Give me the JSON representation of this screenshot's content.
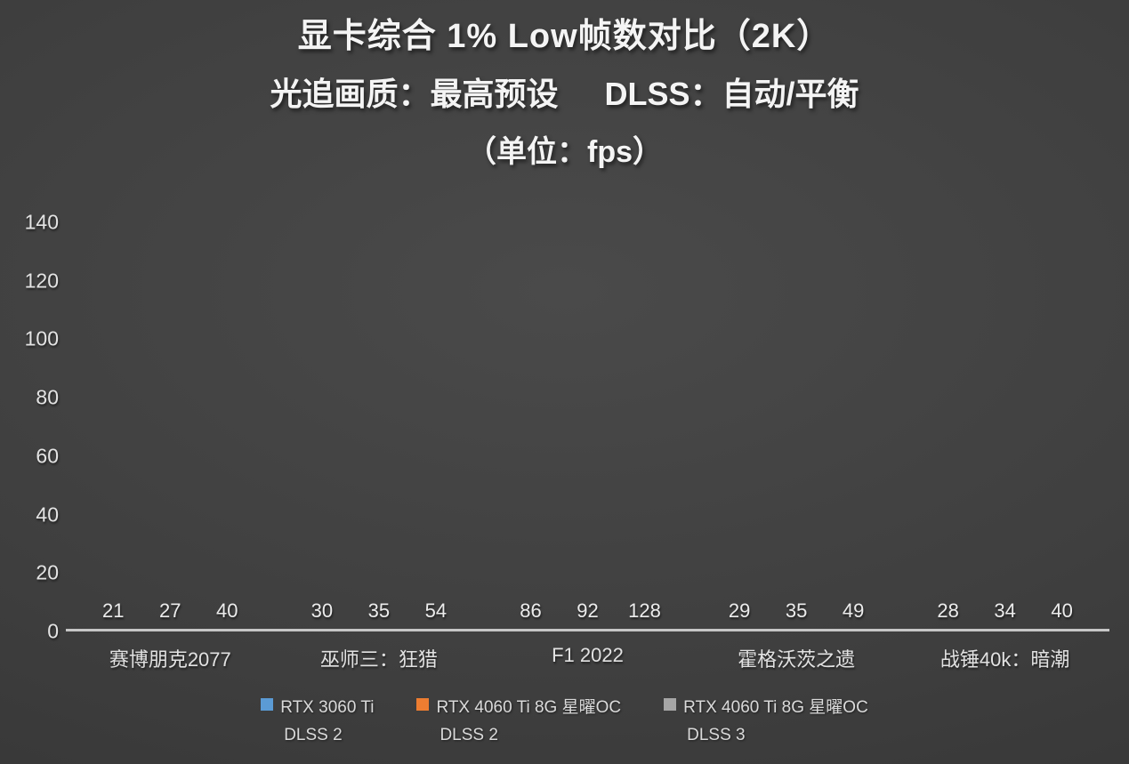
{
  "title": {
    "line1": "显卡综合 1% Low帧数对比（2K）",
    "line2_left": "光追画质：最高预设",
    "line2_right": "DLSS：自动/平衡",
    "line3": "（单位：fps）"
  },
  "chart_data": {
    "type": "bar",
    "title": "显卡综合 1% Low帧数对比（2K）",
    "subtitle": "光追画质：最高预设  DLSS：自动/平衡",
    "unit": "fps",
    "categories": [
      "赛博朋克2077",
      "巫师三：狂猎",
      "F1 2022",
      "霍格沃茨之遗",
      "战锤40k：暗潮"
    ],
    "series": [
      {
        "name": "RTX 3060 Ti DLSS 2",
        "legend_lines": [
          "RTX 3060 Ti",
          "DLSS 2"
        ],
        "color": "#5B9BD5",
        "color_top": "#6FA9E1",
        "color_bottom": "#4C88C6",
        "values": [
          21,
          30,
          86,
          29,
          28
        ]
      },
      {
        "name": "RTX 4060 Ti 8G 星曜OC DLSS 2",
        "legend_lines": [
          "RTX 4060 Ti 8G 星曜OC",
          "DLSS 2"
        ],
        "color": "#ED7D31",
        "color_top": "#F18A41",
        "color_bottom": "#E26F1F",
        "values": [
          27,
          35,
          92,
          35,
          34
        ]
      },
      {
        "name": "RTX 4060 Ti 8G 星曜OC DLSS 3",
        "legend_lines": [
          "RTX 4060 Ti 8G 星曜OC",
          "DLSS 3"
        ],
        "color": "#A6A6A6",
        "color_top": "#BDBDBD",
        "color_bottom": "#989898",
        "values": [
          40,
          54,
          128,
          49,
          40
        ]
      }
    ],
    "ylim": [
      0,
      140
    ],
    "yticks": [
      0,
      20,
      40,
      60,
      80,
      100,
      120,
      140
    ],
    "grid": false,
    "legend_position": "bottom",
    "background_color": "#3F3F3F",
    "axis_line_color": "#C6C6C6"
  }
}
